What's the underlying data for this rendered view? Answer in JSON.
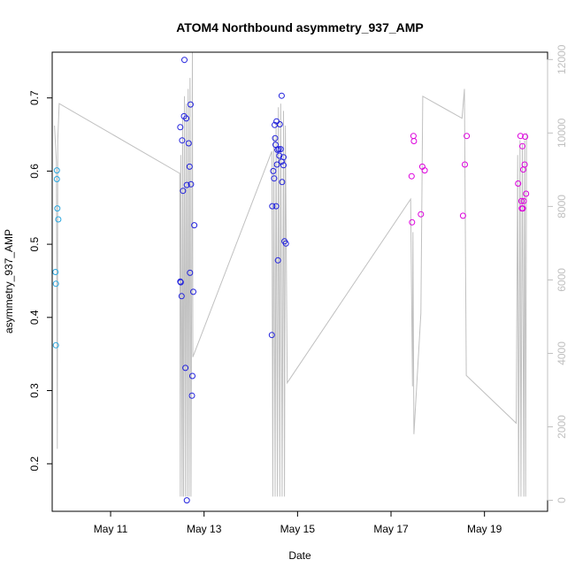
{
  "chart_data": {
    "type": "scatter",
    "title": "ATOM4 Northbound asymmetry_937_AMP",
    "xlabel": "Date",
    "ylabel": "asymmetry_937_AMP",
    "x_ticks": [
      "May 11",
      "May 13",
      "May 15",
      "May 17",
      "May 19"
    ],
    "x_tick_days": [
      11,
      13,
      15,
      17,
      19
    ],
    "xlim": [
      9.75,
      20.35
    ],
    "ylim": [
      0.135,
      0.7625
    ],
    "y_ticks": [
      0.2,
      0.3,
      0.4,
      0.5,
      0.6,
      0.7
    ],
    "y_tick_labels": [
      "0.2",
      "0.3",
      "0.4",
      "0.5",
      "0.6",
      "0.7"
    ],
    "y2lim": [
      -300,
      12200
    ],
    "y2_ticks": [
      0,
      2000,
      4000,
      6000,
      8000,
      10000,
      12000
    ],
    "y2_tick_labels": [
      "0",
      "2000",
      "4000",
      "6000",
      "8000",
      "10000",
      "12000"
    ],
    "grid": false,
    "legend": "none",
    "colors": {
      "line": "#c0c0c0",
      "axis": "#000000",
      "right_axis": "#c0c0c0",
      "point_early": "#2aa8e0",
      "point_mid": "#2222dd",
      "point_late": "#dd00dd"
    },
    "points": [
      {
        "x": 9.82,
        "y": 0.462
      },
      {
        "x": 9.83,
        "y": 0.446
      },
      {
        "x": 9.83,
        "y": 0.362
      },
      {
        "x": 9.85,
        "y": 0.601
      },
      {
        "x": 9.85,
        "y": 0.589
      },
      {
        "x": 9.86,
        "y": 0.549
      },
      {
        "x": 9.88,
        "y": 0.534
      },
      {
        "x": 12.49,
        "y": 0.66
      },
      {
        "x": 12.49,
        "y": 0.449
      },
      {
        "x": 12.5,
        "y": 0.448
      },
      {
        "x": 12.52,
        "y": 0.429
      },
      {
        "x": 12.53,
        "y": 0.642
      },
      {
        "x": 12.55,
        "y": 0.573
      },
      {
        "x": 12.57,
        "y": 0.675
      },
      {
        "x": 12.58,
        "y": 0.752
      },
      {
        "x": 12.6,
        "y": 0.331
      },
      {
        "x": 12.62,
        "y": 0.672
      },
      {
        "x": 12.63,
        "y": 0.581
      },
      {
        "x": 12.63,
        "y": 0.15
      },
      {
        "x": 12.67,
        "y": 0.638
      },
      {
        "x": 12.69,
        "y": 0.606
      },
      {
        "x": 12.7,
        "y": 0.461
      },
      {
        "x": 12.71,
        "y": 0.691
      },
      {
        "x": 12.72,
        "y": 0.582
      },
      {
        "x": 12.74,
        "y": 0.293
      },
      {
        "x": 12.75,
        "y": 0.32
      },
      {
        "x": 12.77,
        "y": 0.435
      },
      {
        "x": 12.79,
        "y": 0.526
      },
      {
        "x": 14.45,
        "y": 0.376
      },
      {
        "x": 14.46,
        "y": 0.552
      },
      {
        "x": 14.48,
        "y": 0.6
      },
      {
        "x": 14.5,
        "y": 0.59
      },
      {
        "x": 14.51,
        "y": 0.663
      },
      {
        "x": 14.52,
        "y": 0.645
      },
      {
        "x": 14.53,
        "y": 0.636
      },
      {
        "x": 14.54,
        "y": 0.552
      },
      {
        "x": 14.55,
        "y": 0.668
      },
      {
        "x": 14.56,
        "y": 0.609
      },
      {
        "x": 14.57,
        "y": 0.629
      },
      {
        "x": 14.58,
        "y": 0.478
      },
      {
        "x": 14.6,
        "y": 0.63
      },
      {
        "x": 14.61,
        "y": 0.621
      },
      {
        "x": 14.62,
        "y": 0.664
      },
      {
        "x": 14.64,
        "y": 0.63
      },
      {
        "x": 14.66,
        "y": 0.613
      },
      {
        "x": 14.66,
        "y": 0.703
      },
      {
        "x": 14.67,
        "y": 0.585
      },
      {
        "x": 14.7,
        "y": 0.619
      },
      {
        "x": 14.7,
        "y": 0.608
      },
      {
        "x": 14.72,
        "y": 0.504
      },
      {
        "x": 14.75,
        "y": 0.501
      },
      {
        "x": 17.44,
        "y": 0.593
      },
      {
        "x": 17.45,
        "y": 0.53
      },
      {
        "x": 17.48,
        "y": 0.648
      },
      {
        "x": 17.49,
        "y": 0.641
      },
      {
        "x": 17.64,
        "y": 0.541
      },
      {
        "x": 17.67,
        "y": 0.606
      },
      {
        "x": 17.72,
        "y": 0.601
      },
      {
        "x": 18.54,
        "y": 0.539
      },
      {
        "x": 18.58,
        "y": 0.609
      },
      {
        "x": 18.62,
        "y": 0.648
      },
      {
        "x": 19.72,
        "y": 0.583
      },
      {
        "x": 19.77,
        "y": 0.648
      },
      {
        "x": 19.79,
        "y": 0.559
      },
      {
        "x": 19.8,
        "y": 0.549
      },
      {
        "x": 19.81,
        "y": 0.634
      },
      {
        "x": 19.82,
        "y": 0.549
      },
      {
        "x": 19.83,
        "y": 0.602
      },
      {
        "x": 19.84,
        "y": 0.559
      },
      {
        "x": 19.86,
        "y": 0.609
      },
      {
        "x": 19.87,
        "y": 0.647
      },
      {
        "x": 19.89,
        "y": 0.569
      }
    ],
    "secondary_line": [
      {
        "x": 9.8,
        "y2": 10200
      },
      {
        "x": 9.84,
        "y2": 9200
      },
      {
        "x": 9.86,
        "y2": 1400
      },
      {
        "x": 9.87,
        "y2": 9800
      },
      {
        "x": 9.9,
        "y2": 10800
      },
      {
        "x": 12.48,
        "y2": 8900
      },
      {
        "x": 12.49,
        "y2": 100
      },
      {
        "x": 12.5,
        "y2": 9400
      },
      {
        "x": 12.53,
        "y2": 100
      },
      {
        "x": 12.54,
        "y2": 10400
      },
      {
        "x": 12.56,
        "y2": 100
      },
      {
        "x": 12.58,
        "y2": 11000
      },
      {
        "x": 12.6,
        "y2": 100
      },
      {
        "x": 12.62,
        "y2": 10800
      },
      {
        "x": 12.64,
        "y2": 100
      },
      {
        "x": 12.66,
        "y2": 11200
      },
      {
        "x": 12.68,
        "y2": 100
      },
      {
        "x": 12.7,
        "y2": 11500
      },
      {
        "x": 12.72,
        "y2": 100
      },
      {
        "x": 12.75,
        "y2": 12200
      },
      {
        "x": 12.76,
        "y2": 3900
      },
      {
        "x": 14.45,
        "y2": 9500
      },
      {
        "x": 14.47,
        "y2": 100
      },
      {
        "x": 14.49,
        "y2": 9900
      },
      {
        "x": 14.52,
        "y2": 100
      },
      {
        "x": 14.54,
        "y2": 10300
      },
      {
        "x": 14.57,
        "y2": 100
      },
      {
        "x": 14.59,
        "y2": 10700
      },
      {
        "x": 14.62,
        "y2": 100
      },
      {
        "x": 14.64,
        "y2": 10800
      },
      {
        "x": 14.67,
        "y2": 100
      },
      {
        "x": 14.7,
        "y2": 10600
      },
      {
        "x": 14.72,
        "y2": 100
      },
      {
        "x": 14.74,
        "y2": 10200
      },
      {
        "x": 14.78,
        "y2": 3200
      },
      {
        "x": 17.42,
        "y2": 8200
      },
      {
        "x": 17.46,
        "y2": 3100
      },
      {
        "x": 17.47,
        "y2": 7300
      },
      {
        "x": 17.49,
        "y2": 1800
      },
      {
        "x": 17.64,
        "y2": 5100
      },
      {
        "x": 17.68,
        "y2": 11000
      },
      {
        "x": 18.52,
        "y2": 10400
      },
      {
        "x": 18.57,
        "y2": 11200
      },
      {
        "x": 18.61,
        "y2": 3400
      },
      {
        "x": 19.68,
        "y2": 2100
      },
      {
        "x": 19.71,
        "y2": 9400
      },
      {
        "x": 19.73,
        "y2": 100
      },
      {
        "x": 19.76,
        "y2": 9800
      },
      {
        "x": 19.78,
        "y2": 100
      },
      {
        "x": 19.81,
        "y2": 9700
      },
      {
        "x": 19.84,
        "y2": 100
      },
      {
        "x": 19.86,
        "y2": 9800
      },
      {
        "x": 19.88,
        "y2": 100
      },
      {
        "x": 19.9,
        "y2": 10000
      }
    ]
  }
}
